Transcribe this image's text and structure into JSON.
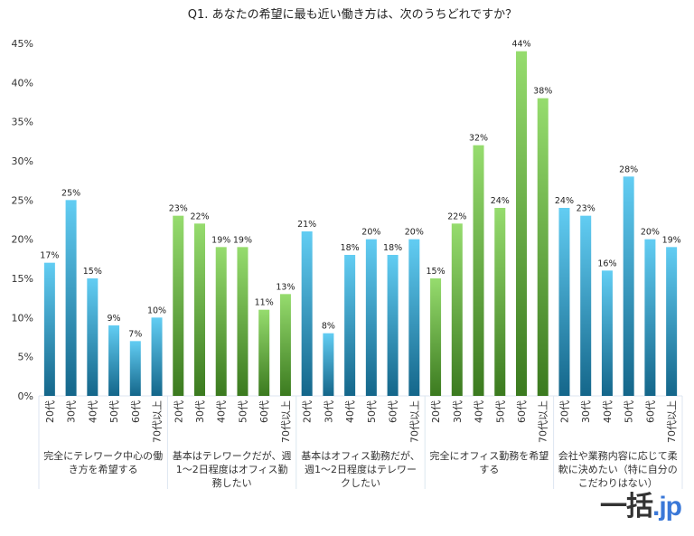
{
  "chart_data": {
    "type": "bar",
    "title": "Q1. あなたの希望に最も近い働き方は、次のうちどれですか？",
    "ylim": [
      0,
      45
    ],
    "yticks": [
      "0%",
      "5%",
      "10%",
      "15%",
      "20%",
      "25%",
      "30%",
      "35%",
      "40%",
      "45%"
    ],
    "grid": false,
    "legend": "none",
    "age_labels": [
      "20代",
      "30代",
      "40代",
      "50代",
      "60代",
      "70代以上"
    ],
    "groups": [
      {
        "label": "完全にテレワーク中心の働き方を希望する",
        "color": "blue",
        "values": [
          17,
          25,
          15,
          9,
          7,
          10
        ]
      },
      {
        "label": "基本はテレワークだが、週1〜2日程度はオフィス勤務したい",
        "color": "green",
        "values": [
          23,
          22,
          19,
          19,
          11,
          13
        ]
      },
      {
        "label": "基本はオフィス勤務だが、週1〜2日程度はテレワークしたい",
        "color": "blue",
        "values": [
          21,
          8,
          18,
          20,
          18,
          20
        ]
      },
      {
        "label": "完全にオフィス勤務を希望する",
        "color": "green",
        "values": [
          15,
          22,
          32,
          24,
          44,
          38
        ]
      },
      {
        "label": "会社や業務内容に応じて柔軟に決めたい（特に自分のこだわりはない）",
        "color": "blue",
        "values": [
          24,
          23,
          16,
          28,
          20,
          19
        ]
      }
    ],
    "colors": {
      "blue_top": "#62cdf3",
      "blue_bottom": "#14668a",
      "green_top": "#96dc6e",
      "green_bottom": "#3b7a1f"
    }
  },
  "logo": {
    "main": "一括",
    "domain": ".jp"
  }
}
